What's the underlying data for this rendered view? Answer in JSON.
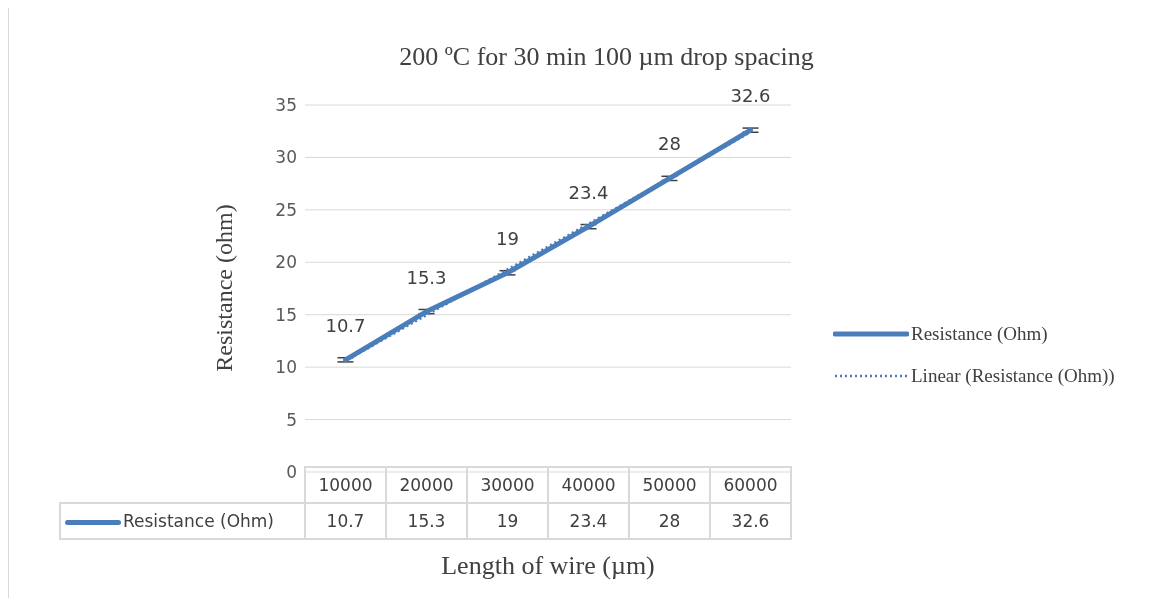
{
  "chart_data": {
    "type": "line",
    "title": "200 ºC for 30 min 100 µm drop spacing",
    "xlabel": "Length of wire (µm)",
    "ylabel": "Resistance (ohm)",
    "categories": [
      "10000",
      "20000",
      "30000",
      "40000",
      "50000",
      "60000"
    ],
    "series": [
      {
        "name": "Resistance (Ohm)",
        "color": "#4a7ebb",
        "values": [
          10.7,
          15.3,
          19,
          23.4,
          28,
          32.6
        ],
        "errors": [
          0.2,
          0.2,
          0.2,
          0.2,
          0.2,
          0.2
        ],
        "value_labels": [
          "10.7",
          "15.3",
          "19",
          "23.4",
          "28",
          "32.6"
        ]
      },
      {
        "name": "Linear (Resistance (Ohm))",
        "type": "line",
        "color": "#4a7ebb",
        "line_style": "dotted",
        "x": [
          "10000",
          "60000"
        ],
        "values": [
          10.6,
          32.4
        ]
      }
    ],
    "ylim": [
      0,
      35
    ],
    "yticks": [
      0,
      5,
      10,
      15,
      20,
      25,
      30,
      35
    ],
    "grid": "y",
    "legend": "right",
    "marker": "none"
  }
}
